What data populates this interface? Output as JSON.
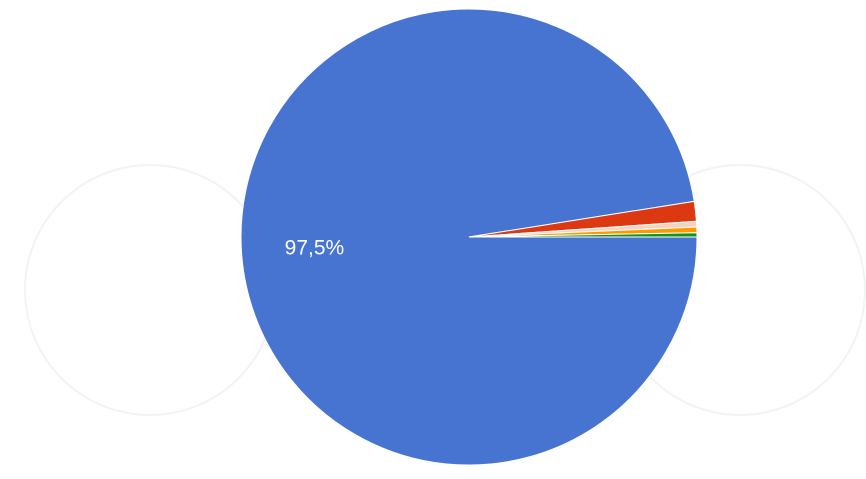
{
  "chart_data": {
    "type": "pie",
    "values": [
      97.5,
      1.4,
      0.4,
      0.4,
      0.3
    ],
    "value_labels": [
      "97,5%",
      null,
      null,
      null,
      null
    ],
    "colors": [
      "#4874d1",
      "#dc3912",
      "#f6d3c1",
      "#ff9900",
      "#109618"
    ]
  }
}
